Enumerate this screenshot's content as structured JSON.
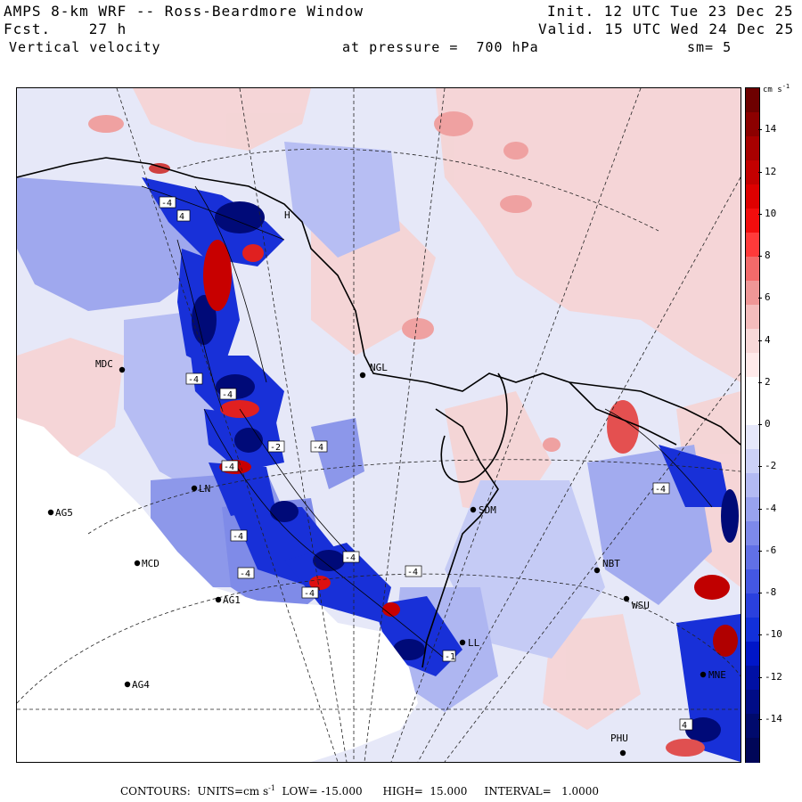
{
  "header": {
    "title": "AMPS 8-km WRF -- Ross-Beardmore Window",
    "forecast": "Fcst.    27 h",
    "variable": "Vertical velocity",
    "init": "Init. 12 UTC Tue 23 Dec 25",
    "valid": "Valid. 15 UTC Wed 24 Dec 25",
    "pressure": "at pressure =  700 hPa",
    "smoothing": "sm= 5"
  },
  "colorbar": {
    "units": "cm s",
    "units_exp": "-1",
    "ticks": [
      "14",
      "12",
      "10",
      "8",
      "6",
      "4",
      "2",
      "0",
      "-2",
      "-4",
      "-6",
      "-8",
      "-10",
      "-12",
      "-14"
    ],
    "colors": [
      "#6e0000",
      "#8c0000",
      "#a80000",
      "#c40000",
      "#de0000",
      "#f20d0d",
      "#ff3a3a",
      "#f36a6a",
      "#ef9696",
      "#f4bcbc",
      "#f8d8d8",
      "#ffeaea",
      "#ffffff",
      "#ffffff",
      "#e6e8fb",
      "#ccd1f7",
      "#b3baf3",
      "#98a2ee",
      "#7d89ea",
      "#6170e6",
      "#4457e2",
      "#2a40de",
      "#1230da",
      "#0016c8",
      "#0010a4",
      "#000c86",
      "#000a6c",
      "#000658"
    ]
  },
  "stations": [
    {
      "id": "MDC"
    },
    {
      "id": "NGL"
    },
    {
      "id": "AG5"
    },
    {
      "id": "MCD"
    },
    {
      "id": "AG1"
    },
    {
      "id": "AG4"
    },
    {
      "id": "SDM"
    },
    {
      "id": "NBT"
    },
    {
      "id": "WSU"
    },
    {
      "id": "PHU"
    },
    {
      "id": "H"
    },
    {
      "id": "LL"
    },
    {
      "id": "MNE"
    },
    {
      "id": "LN"
    }
  ],
  "contour_labels": [
    "-4",
    "-4",
    "-4",
    "-4",
    "-4",
    "4",
    "-4",
    "-1",
    "-4",
    "4",
    "-4",
    "-4",
    "-2",
    "-4",
    "-4"
  ],
  "footer": {
    "text1": "CONTOURS:  UNITS=cm s",
    "exp": "-1",
    "text2": "  LOW= -15.000      HIGH=  15.000     INTERVAL=   1.0000"
  },
  "colors": {
    "background_field": "#e6e8f8",
    "strong_up": "#b00000",
    "strong_down": "#0010a0",
    "landmask": "#ffffff"
  }
}
